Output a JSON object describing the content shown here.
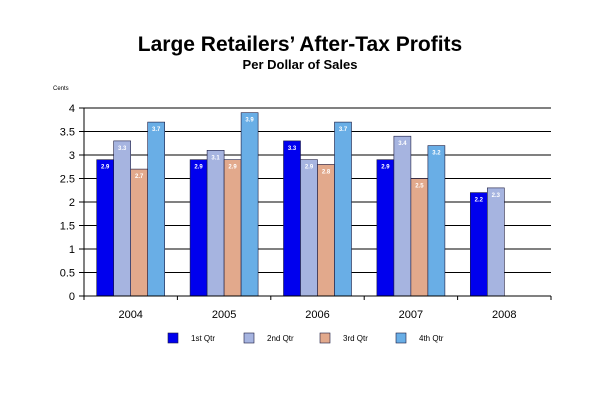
{
  "chart_data": {
    "type": "bar",
    "title": "Large Retailers’ After-Tax Profits",
    "subtitle": "Per Dollar of Sales",
    "ylabel": "Cents",
    "xlabel": "",
    "ylim": [
      0,
      4
    ],
    "yticks": [
      "0",
      "0.5",
      "1",
      "1.5",
      "2",
      "2.5",
      "3",
      "3.5",
      "4"
    ],
    "grid": true,
    "legend_position": "bottom",
    "categories": [
      "2004",
      "2005",
      "2006",
      "2007",
      "2008"
    ],
    "series": [
      {
        "name": "1st Qtr",
        "color": "#0000ee",
        "values": [
          2.9,
          2.9,
          3.3,
          2.9,
          2.2
        ],
        "labels": [
          "2.9",
          "2.9",
          "3.3",
          "2.9",
          "2.2"
        ]
      },
      {
        "name": "2nd Qtr",
        "color": "#a6b4e0",
        "values": [
          3.3,
          3.1,
          2.9,
          3.4,
          2.3
        ],
        "labels": [
          "3.3",
          "3.1",
          "2.9",
          "3.4",
          "2.3"
        ]
      },
      {
        "name": "3rd Qtr",
        "color": "#e2a98c",
        "values": [
          2.7,
          2.9,
          2.8,
          2.5,
          null
        ],
        "labels": [
          "2.7",
          "2.9",
          "2.8",
          "2.5",
          ""
        ]
      },
      {
        "name": "4th Qtr",
        "color": "#69aee6",
        "values": [
          3.7,
          3.9,
          3.7,
          3.2,
          null
        ],
        "labels": [
          "3.7",
          "3.9",
          "3.7",
          "3.2",
          ""
        ]
      }
    ]
  }
}
